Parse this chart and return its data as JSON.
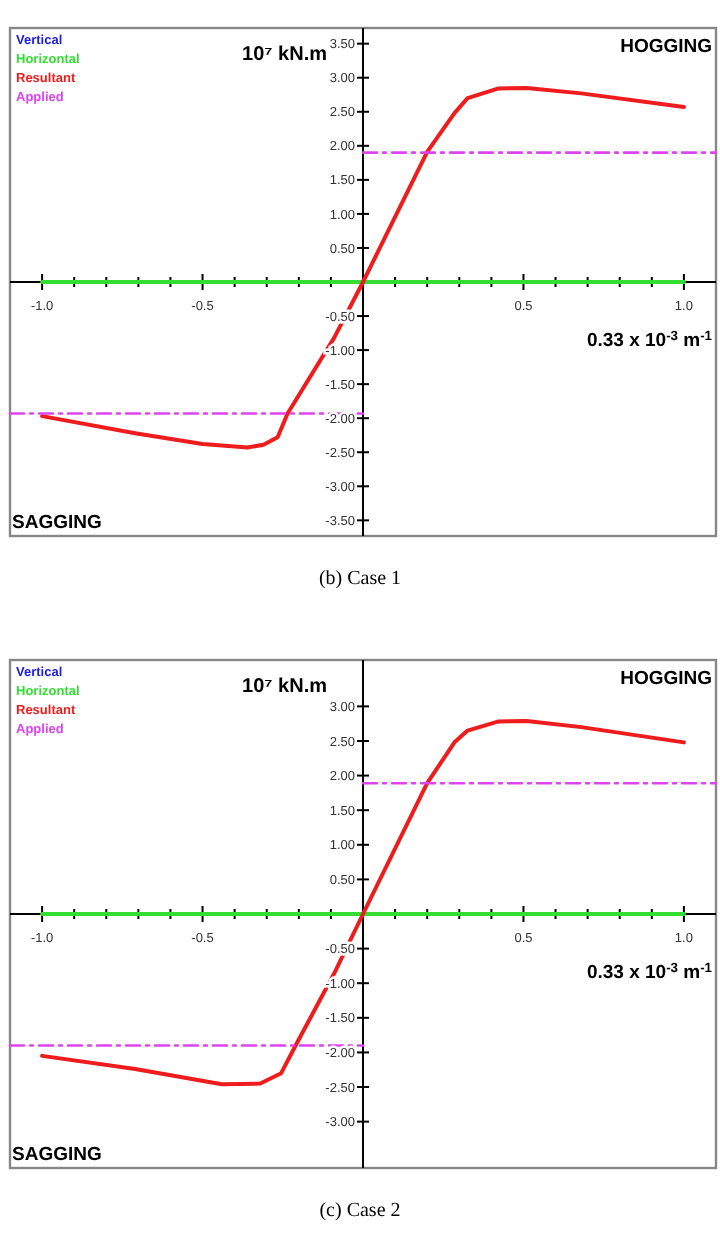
{
  "chart_data": [
    {
      "type": "line",
      "title": "(b) Case 1",
      "ylabel": "10⁷ kN.m",
      "xlabel": "0.33 x 10$^{-3}$ m$^{-1}$",
      "annotations": [
        "HOGGING",
        "SAGGING"
      ],
      "legend": "top left",
      "line_style": "solid",
      "marker": "none",
      "xlim": [
        -1.1,
        1.1
      ],
      "ylim": [
        -3.73,
        3.73
      ],
      "xticks": [
        {
          "value": -1,
          "label": "-1.0"
        },
        {
          "value": -0.9,
          "label": null
        },
        {
          "value": -0.8,
          "label": null
        },
        {
          "value": -0.7,
          "label": null
        },
        {
          "value": -0.6,
          "label": null
        },
        {
          "value": -0.5,
          "label": "-0.5"
        },
        {
          "value": -0.4,
          "label": null
        },
        {
          "value": -0.3,
          "label": null
        },
        {
          "value": -0.2,
          "label": null
        },
        {
          "value": -0.1,
          "label": null
        },
        {
          "value": 0.1,
          "label": null
        },
        {
          "value": 0.2,
          "label": null
        },
        {
          "value": 0.3,
          "label": null
        },
        {
          "value": 0.4,
          "label": null
        },
        {
          "value": 0.5,
          "label": "0.5"
        },
        {
          "value": 0.6,
          "label": null
        },
        {
          "value": 0.7,
          "label": null
        },
        {
          "value": 0.8,
          "label": null
        },
        {
          "value": 0.9,
          "label": null
        },
        {
          "value": 1,
          "label": "1.0"
        }
      ],
      "yticks": [
        {
          "value": -3.5,
          "label": "-3.50"
        },
        {
          "value": -3,
          "label": "-3.00"
        },
        {
          "value": -2.5,
          "label": "-2.50"
        },
        {
          "value": -2,
          "label": "-2.00"
        },
        {
          "value": -1.5,
          "label": "-1.50"
        },
        {
          "value": -1,
          "label": "-1.00"
        },
        {
          "value": -0.5,
          "label": "-0.50"
        },
        {
          "value": 0.5,
          "label": "0.50"
        },
        {
          "value": 1,
          "label": "1.00"
        },
        {
          "value": 1.5,
          "label": "1.50"
        },
        {
          "value": 2,
          "label": "2.00"
        },
        {
          "value": 2.5,
          "label": "2.50"
        },
        {
          "value": 3,
          "label": "3.00"
        },
        {
          "value": 3.5,
          "label": "3.50"
        }
      ],
      "series": [
        {
          "name": "Vertical",
          "color": "#2020e0"
        },
        {
          "name": "Horizontal",
          "color": "#33dd33",
          "x": [
            -1,
            1
          ],
          "values": [
            0,
            0
          ]
        },
        {
          "name": "Resultant",
          "color": "#ee1c1c",
          "x": [
            -1,
            -0.71,
            -0.5,
            -0.36,
            -0.31,
            -0.266,
            -0.235,
            -0.09,
            0,
            0.2,
            0.285,
            0.326,
            0.42,
            0.51,
            0.68,
            1
          ],
          "values": [
            -1.97,
            -2.22,
            -2.38,
            -2.43,
            -2.39,
            -2.28,
            -1.93,
            -0.82,
            0,
            1.91,
            2.48,
            2.7,
            2.84,
            2.85,
            2.77,
            2.57
          ]
        },
        {
          "name": "Applied",
          "color": "#dd44ee",
          "line_style": "dashed",
          "x": [
            0,
            1.1
          ],
          "values": [
            1.9,
            1.9
          ]
        },
        {
          "color": "#dd44ee",
          "line_style": "dashed",
          "x": [
            -1.1,
            0
          ],
          "values": [
            -1.93,
            -1.93
          ]
        }
      ]
    },
    {
      "type": "line",
      "title": "(c) Case 2",
      "ylabel": "10⁷ kN.m",
      "xlabel": "0.33 x 10$^{-3}$ m$^{-1}$",
      "annotations": [
        "HOGGING",
        "SAGGING"
      ],
      "legend": "top left",
      "line_style": "solid",
      "marker": "none",
      "xlim": [
        -1.1,
        1.1
      ],
      "ylim": [
        -3.67,
        3.67
      ],
      "xticks": [
        {
          "value": -1,
          "label": "-1.0"
        },
        {
          "value": -0.9,
          "label": null
        },
        {
          "value": -0.8,
          "label": null
        },
        {
          "value": -0.7,
          "label": null
        },
        {
          "value": -0.6,
          "label": null
        },
        {
          "value": -0.5,
          "label": "-0.5"
        },
        {
          "value": -0.4,
          "label": null
        },
        {
          "value": -0.3,
          "label": null
        },
        {
          "value": -0.2,
          "label": null
        },
        {
          "value": -0.1,
          "label": null
        },
        {
          "value": 0.1,
          "label": null
        },
        {
          "value": 0.2,
          "label": null
        },
        {
          "value": 0.3,
          "label": null
        },
        {
          "value": 0.4,
          "label": null
        },
        {
          "value": 0.5,
          "label": "0.5"
        },
        {
          "value": 0.6,
          "label": null
        },
        {
          "value": 0.7,
          "label": null
        },
        {
          "value": 0.8,
          "label": null
        },
        {
          "value": 0.9,
          "label": null
        },
        {
          "value": 1,
          "label": "1.0"
        }
      ],
      "yticks": [
        {
          "value": -3,
          "label": "-3.00"
        },
        {
          "value": -2.5,
          "label": "-2.50"
        },
        {
          "value": -2,
          "label": "-2.00"
        },
        {
          "value": -1.5,
          "label": "-1.50"
        },
        {
          "value": -1,
          "label": "-1.00"
        },
        {
          "value": -0.5,
          "label": "-0.50"
        },
        {
          "value": 0.5,
          "label": "0.50"
        },
        {
          "value": 1,
          "label": "1.00"
        },
        {
          "value": 1.5,
          "label": "1.50"
        },
        {
          "value": 2,
          "label": "2.00"
        },
        {
          "value": 2.5,
          "label": "2.50"
        },
        {
          "value": 3,
          "label": "3.00"
        }
      ],
      "series": [
        {
          "name": "Vertical",
          "color": "#2020e0"
        },
        {
          "name": "Horizontal",
          "color": "#33dd33",
          "x": [
            -1,
            1
          ],
          "values": [
            0,
            0
          ]
        },
        {
          "name": "Resultant",
          "color": "#ee1c1c",
          "x": [
            -1,
            -0.71,
            -0.44,
            -0.32,
            -0.255,
            -0.21,
            -0.09,
            0,
            0.2,
            0.285,
            0.326,
            0.42,
            0.51,
            0.68,
            1
          ],
          "values": [
            -2.05,
            -2.24,
            -2.46,
            -2.45,
            -2.3,
            -1.9,
            -0.86,
            0,
            1.89,
            2.48,
            2.65,
            2.78,
            2.79,
            2.7,
            2.48
          ]
        },
        {
          "name": "Applied",
          "color": "#dd44ee",
          "line_style": "dashed",
          "x": [
            0,
            1.1
          ],
          "values": [
            1.89,
            1.89
          ]
        },
        {
          "color": "#dd44ee",
          "line_style": "dashed",
          "x": [
            -1.1,
            0
          ],
          "values": [
            -1.9,
            -1.9
          ]
        }
      ]
    }
  ]
}
